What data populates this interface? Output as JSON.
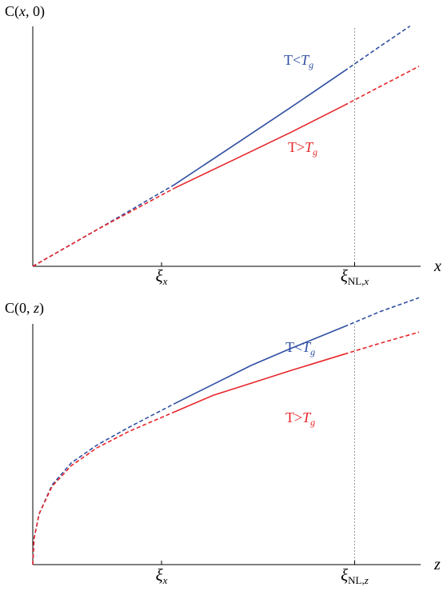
{
  "colors": {
    "blue": "#2f4fa2",
    "red": "#e8262b",
    "axis": "#000000",
    "guide": "#9a9a9a"
  },
  "chart_data": [
    {
      "type": "line",
      "ylabel": "C(x, 0)",
      "xlabel": "x",
      "ylim": [
        0,
        10
      ],
      "xlim": [
        0,
        3.0
      ],
      "xticks": [
        {
          "x": 1.0,
          "label": "ξ",
          "sub": "x"
        },
        {
          "x": 2.5,
          "label": "ξ",
          "sub": "NL,x"
        }
      ],
      "vline": 2.5,
      "series": [
        {
          "name": "T<Tg",
          "label": "T<",
          "label_italic": "T",
          "label_sub": "g",
          "color": "blue",
          "segments": [
            {
              "style": "dashed",
              "x": [
                0.0,
                0.5,
                1.1
              ],
              "y": [
                0.0,
                1.55,
                3.45
              ]
            },
            {
              "style": "solid",
              "x": [
                1.1,
                1.6,
                2.0,
                2.42
              ],
              "y": [
                3.45,
                5.25,
                6.7,
                8.25
              ]
            },
            {
              "style": "dashed",
              "x": [
                2.42,
                2.7,
                2.93
              ],
              "y": [
                8.25,
                9.3,
                10.15
              ]
            }
          ]
        },
        {
          "name": "T>Tg",
          "label": "T>",
          "label_italic": "T",
          "label_sub": "g",
          "color": "red",
          "segments": [
            {
              "style": "dashed",
              "x": [
                0.0,
                0.5,
                1.1
              ],
              "y": [
                0.0,
                1.55,
                3.3
              ]
            },
            {
              "style": "solid",
              "x": [
                1.1,
                1.6,
                2.0,
                2.42
              ],
              "y": [
                3.3,
                4.6,
                5.65,
                6.8
              ]
            },
            {
              "style": "dashed",
              "x": [
                2.42,
                2.7,
                3.0
              ],
              "y": [
                6.8,
                7.6,
                8.45
              ]
            }
          ]
        }
      ]
    },
    {
      "type": "line",
      "ylabel": "C(0, z)",
      "xlabel": "z",
      "ylim": [
        0,
        10
      ],
      "xlim": [
        0,
        3.0
      ],
      "xticks": [
        {
          "x": 1.0,
          "label": "ξ",
          "sub": "x"
        },
        {
          "x": 2.5,
          "label": "ξ",
          "sub": "NL,z"
        }
      ],
      "vline": 2.5,
      "series": [
        {
          "name": "T<Tg",
          "label": "T<",
          "label_italic": "T",
          "label_sub": "g",
          "color": "blue",
          "segments": [
            {
              "style": "dashed",
              "x": [
                0.0,
                0.01,
                0.05,
                0.15,
                0.3,
                0.5,
                0.75,
                1.1
              ],
              "y": [
                0.0,
                0.95,
                1.85,
                2.9,
                3.7,
                4.35,
                5.0,
                5.85
              ]
            },
            {
              "style": "solid",
              "x": [
                1.1,
                1.4,
                1.7,
                2.0,
                2.42
              ],
              "y": [
                5.85,
                6.55,
                7.25,
                7.85,
                8.65
              ]
            },
            {
              "style": "dashed",
              "x": [
                2.42,
                2.7,
                3.0
              ],
              "y": [
                8.65,
                9.2,
                9.7
              ]
            }
          ]
        },
        {
          "name": "T>Tg",
          "label": "T>",
          "label_italic": "T",
          "label_sub": "g",
          "color": "red",
          "segments": [
            {
              "style": "dashed",
              "x": [
                0.0,
                0.01,
                0.05,
                0.15,
                0.3,
                0.5,
                0.75,
                1.1
              ],
              "y": [
                0.0,
                0.95,
                1.85,
                2.85,
                3.6,
                4.25,
                4.85,
                5.55
              ]
            },
            {
              "style": "solid",
              "x": [
                1.1,
                1.4,
                1.7,
                2.0,
                2.42
              ],
              "y": [
                5.55,
                6.15,
                6.6,
                7.05,
                7.65
              ]
            },
            {
              "style": "dashed",
              "x": [
                2.42,
                2.7,
                3.0
              ],
              "y": [
                7.65,
                8.05,
                8.45
              ]
            }
          ]
        }
      ]
    }
  ]
}
